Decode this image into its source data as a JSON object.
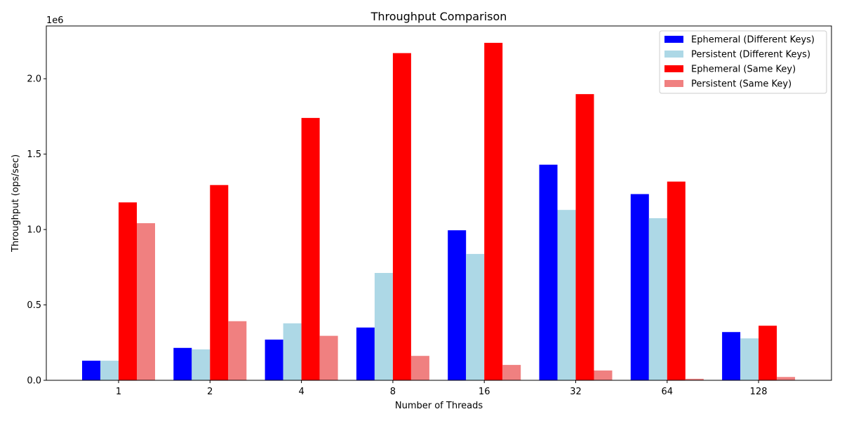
{
  "chart_data": {
    "type": "bar",
    "title": "Throughput Comparison",
    "xlabel": "Number of Threads",
    "ylabel": "Throughput (ops/sec)",
    "y_offset_label": "1e6",
    "categories": [
      "1",
      "2",
      "4",
      "8",
      "16",
      "32",
      "64",
      "128"
    ],
    "ylim": [
      0,
      2350000
    ],
    "yticks": [
      0,
      500000,
      1000000,
      1500000,
      2000000
    ],
    "ytick_labels": [
      "0.0",
      "0.5",
      "1.0",
      "1.5",
      "2.0"
    ],
    "grid": false,
    "legend_position": "top-right",
    "series": [
      {
        "name": "Ephemeral (Different Keys)",
        "color": "#0000ff",
        "values": [
          130000,
          215000,
          270000,
          350000,
          995000,
          1430000,
          1235000,
          320000
        ]
      },
      {
        "name": "Persistent (Different Keys)",
        "color": "#add8e6",
        "values": [
          130000,
          205000,
          378000,
          712000,
          838000,
          1130000,
          1075000,
          278000
        ]
      },
      {
        "name": "Ephemeral (Same Key)",
        "color": "#ff0000",
        "values": [
          1180000,
          1295000,
          1740000,
          2170000,
          2238000,
          1898000,
          1318000,
          362000
        ]
      },
      {
        "name": "Persistent (Same Key)",
        "color": "#f08080",
        "values": [
          1042000,
          392000,
          295000,
          162000,
          102000,
          65000,
          10000,
          22000
        ]
      }
    ]
  }
}
